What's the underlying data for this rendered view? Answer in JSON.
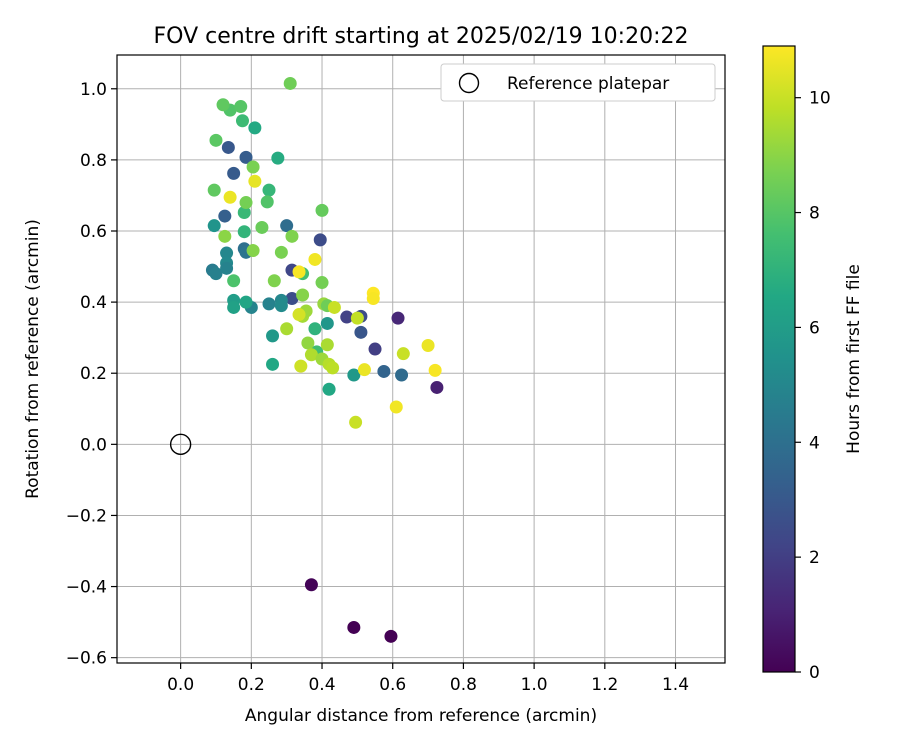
{
  "chart_data": {
    "type": "scatter",
    "title": "FOV centre drift starting at 2025/02/19 10:20:22",
    "xlabel": "Angular distance from reference (arcmin)",
    "ylabel": "Rotation from reference (arcmin)",
    "xlim": [
      -0.18,
      1.54
    ],
    "ylim": [
      -0.615,
      1.095
    ],
    "xticks": [
      "0.0",
      "0.2",
      "0.4",
      "0.6",
      "0.8",
      "1.0",
      "1.2",
      "1.4"
    ],
    "xtick_values": [
      0,
      0.2,
      0.4,
      0.6,
      0.8,
      1.0,
      1.2,
      1.4
    ],
    "yticks": [
      "−0.6",
      "−0.4",
      "−0.2",
      "0.0",
      "0.2",
      "0.4",
      "0.6",
      "0.8",
      "1.0"
    ],
    "ytick_values": [
      -0.6,
      -0.4,
      -0.2,
      0,
      0.2,
      0.4,
      0.6,
      0.8,
      1.0
    ],
    "grid": true,
    "legend": {
      "position": "top-right",
      "label": "Reference platepar"
    },
    "reference_point": {
      "x": 0.0,
      "y": 0.0
    },
    "colorbar": {
      "label": "Hours from first FF file",
      "colormap": "viridis",
      "range": [
        0,
        10.9
      ],
      "ticks": [
        "0",
        "2",
        "4",
        "6",
        "8",
        "10"
      ],
      "tick_values": [
        0,
        2,
        4,
        6,
        8,
        10
      ]
    },
    "points": [
      {
        "x": 0.37,
        "y": -0.395,
        "h": 0.1
      },
      {
        "x": 0.49,
        "y": -0.515,
        "h": 0.0
      },
      {
        "x": 0.595,
        "y": -0.54,
        "h": 0.0
      },
      {
        "x": 0.725,
        "y": 0.16,
        "h": 1.0
      },
      {
        "x": 0.615,
        "y": 0.355,
        "h": 1.2
      },
      {
        "x": 0.55,
        "y": 0.268,
        "h": 2.0
      },
      {
        "x": 0.47,
        "y": 0.358,
        "h": 2.1
      },
      {
        "x": 0.51,
        "y": 0.36,
        "h": 2.5
      },
      {
        "x": 0.51,
        "y": 0.315,
        "h": 2.9
      },
      {
        "x": 0.395,
        "y": 0.575,
        "h": 2.5
      },
      {
        "x": 0.315,
        "y": 0.49,
        "h": 2.3
      },
      {
        "x": 0.315,
        "y": 0.41,
        "h": 2.6
      },
      {
        "x": 0.575,
        "y": 0.205,
        "h": 3.5
      },
      {
        "x": 0.625,
        "y": 0.195,
        "h": 3.8
      },
      {
        "x": 0.135,
        "y": 0.835,
        "h": 3.0
      },
      {
        "x": 0.15,
        "y": 0.762,
        "h": 3.1
      },
      {
        "x": 0.185,
        "y": 0.807,
        "h": 3.2
      },
      {
        "x": 0.125,
        "y": 0.642,
        "h": 3.3
      },
      {
        "x": 0.3,
        "y": 0.615,
        "h": 3.9
      },
      {
        "x": 0.18,
        "y": 0.55,
        "h": 4.0
      },
      {
        "x": 0.185,
        "y": 0.54,
        "h": 4.2
      },
      {
        "x": 0.09,
        "y": 0.49,
        "h": 4.5
      },
      {
        "x": 0.1,
        "y": 0.48,
        "h": 4.7
      },
      {
        "x": 0.13,
        "y": 0.538,
        "h": 5.0
      },
      {
        "x": 0.13,
        "y": 0.51,
        "h": 5.1
      },
      {
        "x": 0.13,
        "y": 0.495,
        "h": 4.8
      },
      {
        "x": 0.25,
        "y": 0.395,
        "h": 4.8
      },
      {
        "x": 0.285,
        "y": 0.405,
        "h": 5.0
      },
      {
        "x": 0.285,
        "y": 0.39,
        "h": 5.2
      },
      {
        "x": 0.2,
        "y": 0.385,
        "h": 4.9
      },
      {
        "x": 0.26,
        "y": 0.305,
        "h": 5.8
      },
      {
        "x": 0.415,
        "y": 0.34,
        "h": 5.7
      },
      {
        "x": 0.49,
        "y": 0.195,
        "h": 5.8
      },
      {
        "x": 0.095,
        "y": 0.615,
        "h": 5.6
      },
      {
        "x": 0.15,
        "y": 0.405,
        "h": 6.0
      },
      {
        "x": 0.15,
        "y": 0.385,
        "h": 6.2
      },
      {
        "x": 0.185,
        "y": 0.4,
        "h": 6.4
      },
      {
        "x": 0.26,
        "y": 0.225,
        "h": 6.5
      },
      {
        "x": 0.42,
        "y": 0.155,
        "h": 6.5
      },
      {
        "x": 0.21,
        "y": 0.89,
        "h": 6.6
      },
      {
        "x": 0.275,
        "y": 0.805,
        "h": 6.7
      },
      {
        "x": 0.25,
        "y": 0.715,
        "h": 7.2
      },
      {
        "x": 0.18,
        "y": 0.652,
        "h": 7.3
      },
      {
        "x": 0.18,
        "y": 0.598,
        "h": 7.1
      },
      {
        "x": 0.175,
        "y": 0.91,
        "h": 7.4
      },
      {
        "x": 0.38,
        "y": 0.325,
        "h": 7.0
      },
      {
        "x": 0.385,
        "y": 0.26,
        "h": 7.5
      },
      {
        "x": 0.345,
        "y": 0.48,
        "h": 7.6
      },
      {
        "x": 0.245,
        "y": 0.682,
        "h": 7.9
      },
      {
        "x": 0.15,
        "y": 0.46,
        "h": 7.8
      },
      {
        "x": 0.14,
        "y": 0.94,
        "h": 7.9
      },
      {
        "x": 0.17,
        "y": 0.95,
        "h": 8.0
      },
      {
        "x": 0.12,
        "y": 0.955,
        "h": 8.2
      },
      {
        "x": 0.1,
        "y": 0.855,
        "h": 8.1
      },
      {
        "x": 0.31,
        "y": 1.015,
        "h": 8.5
      },
      {
        "x": 0.095,
        "y": 0.715,
        "h": 8.2
      },
      {
        "x": 0.185,
        "y": 0.68,
        "h": 8.6
      },
      {
        "x": 0.23,
        "y": 0.61,
        "h": 8.4
      },
      {
        "x": 0.315,
        "y": 0.585,
        "h": 8.8
      },
      {
        "x": 0.205,
        "y": 0.545,
        "h": 8.9
      },
      {
        "x": 0.285,
        "y": 0.54,
        "h": 8.7
      },
      {
        "x": 0.125,
        "y": 0.585,
        "h": 9.0
      },
      {
        "x": 0.265,
        "y": 0.46,
        "h": 8.8
      },
      {
        "x": 0.345,
        "y": 0.42,
        "h": 8.9
      },
      {
        "x": 0.4,
        "y": 0.658,
        "h": 8.3
      },
      {
        "x": 0.4,
        "y": 0.455,
        "h": 8.6
      },
      {
        "x": 0.405,
        "y": 0.395,
        "h": 9.2
      },
      {
        "x": 0.415,
        "y": 0.39,
        "h": 8.5
      },
      {
        "x": 0.345,
        "y": 0.36,
        "h": 9.4
      },
      {
        "x": 0.355,
        "y": 0.375,
        "h": 9.3
      },
      {
        "x": 0.3,
        "y": 0.325,
        "h": 9.5
      },
      {
        "x": 0.36,
        "y": 0.285,
        "h": 9.1
      },
      {
        "x": 0.37,
        "y": 0.252,
        "h": 9.6
      },
      {
        "x": 0.4,
        "y": 0.24,
        "h": 9.3
      },
      {
        "x": 0.415,
        "y": 0.28,
        "h": 9.5
      },
      {
        "x": 0.42,
        "y": 0.225,
        "h": 9.7
      },
      {
        "x": 0.43,
        "y": 0.215,
        "h": 9.8
      },
      {
        "x": 0.205,
        "y": 0.78,
        "h": 8.7
      },
      {
        "x": 0.5,
        "y": 0.355,
        "h": 9.9
      },
      {
        "x": 0.495,
        "y": 0.062,
        "h": 10.0
      },
      {
        "x": 0.34,
        "y": 0.22,
        "h": 10.1
      },
      {
        "x": 0.435,
        "y": 0.385,
        "h": 10.0
      },
      {
        "x": 0.63,
        "y": 0.255,
        "h": 10.0
      },
      {
        "x": 0.335,
        "y": 0.365,
        "h": 10.2
      },
      {
        "x": 0.21,
        "y": 0.74,
        "h": 10.5
      },
      {
        "x": 0.14,
        "y": 0.695,
        "h": 10.6
      },
      {
        "x": 0.38,
        "y": 0.52,
        "h": 10.7
      },
      {
        "x": 0.335,
        "y": 0.485,
        "h": 10.8
      },
      {
        "x": 0.545,
        "y": 0.425,
        "h": 10.9
      },
      {
        "x": 0.545,
        "y": 0.41,
        "h": 10.8
      },
      {
        "x": 0.52,
        "y": 0.21,
        "h": 10.6
      },
      {
        "x": 0.61,
        "y": 0.105,
        "h": 10.7
      },
      {
        "x": 0.7,
        "y": 0.278,
        "h": 10.6
      },
      {
        "x": 0.72,
        "y": 0.208,
        "h": 10.8
      }
    ]
  }
}
